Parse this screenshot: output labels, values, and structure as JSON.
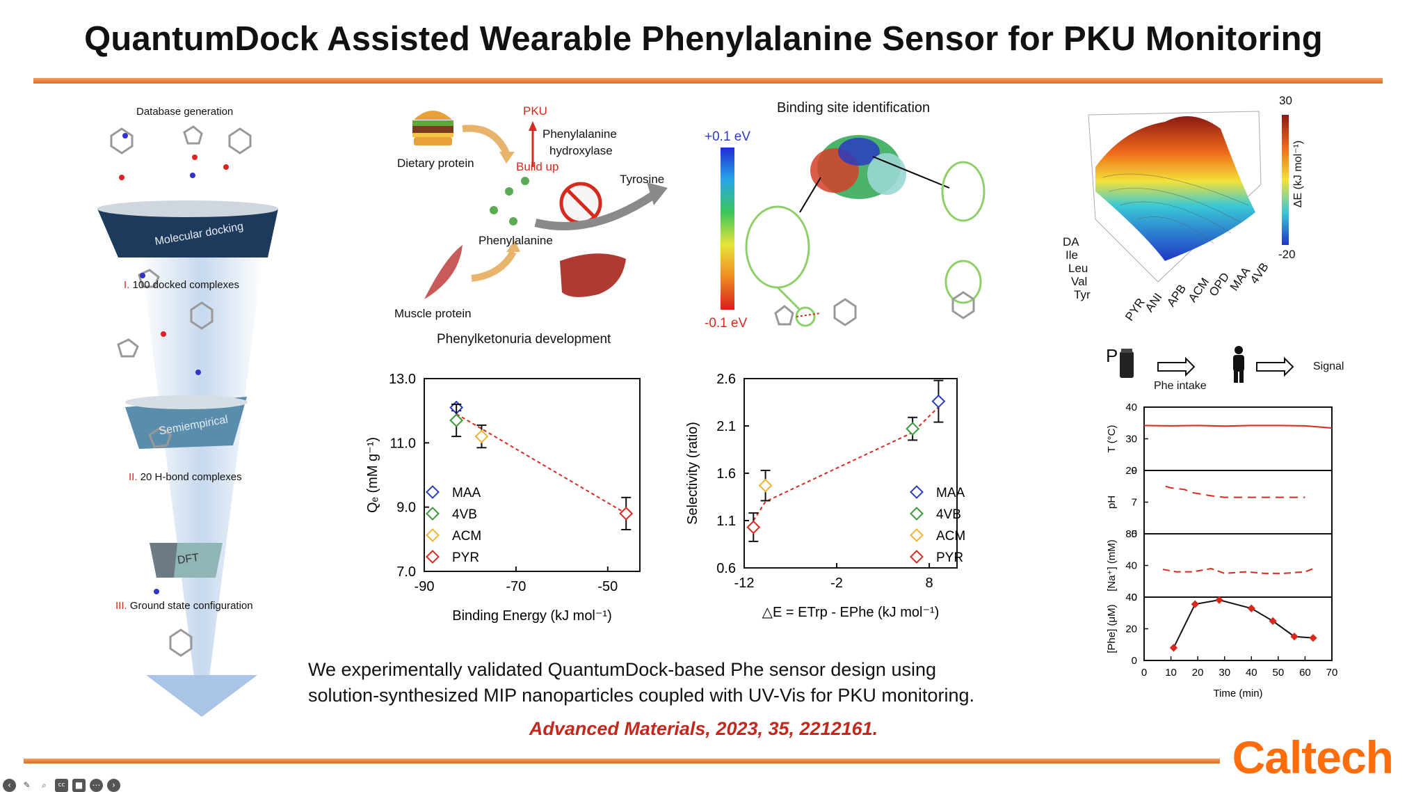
{
  "slide": {
    "title": "QuantumDock Assisted Wearable Phenylalanine Sensor for PKU Monitoring",
    "caption_line1": "We experimentally validated QuantumDock-based Phe sensor design using",
    "caption_line2": "solution-synthesized MIP nanoparticles coupled with UV-Vis for PKU monitoring.",
    "citation": "Advanced Materials, 2023, 35, 2212161.",
    "logo": "Caltech",
    "colors": {
      "accent_rule": "#e87a2c",
      "citation": "#c4281c",
      "logo": "#ff6c0c"
    }
  },
  "funnel": {
    "database_label": "Database generation",
    "stage1": "Molecular docking",
    "step1_num": "I.",
    "step1_text": "100 docked complexes",
    "stage2": "Semiempirical",
    "step2_num": "II.",
    "step2_text": "20 H-bond complexes",
    "stage3": "DFT",
    "step3_num": "III.",
    "step3_text": "Ground state configuration"
  },
  "pku_diagram": {
    "pku": "PKU",
    "enzyme_line1": "Phenylalanine",
    "enzyme_line2": "hydroxylase",
    "build_up": "Build up",
    "dietary": "Dietary protein",
    "tyrosine": "Tyrosine",
    "phenylalanine": "Phenylalanine",
    "muscle": "Muscle protein",
    "caption": "Phenylketonuria development"
  },
  "binding_site": {
    "title": "Binding site identification",
    "scale_top": "+0.1 eV",
    "scale_bottom": "-0.1 eV"
  },
  "surface_plot": {
    "cbar_top": "30",
    "cbar_bottom": "-20",
    "cbar_label": "ΔE (kJ mol⁻¹)",
    "y_labels": [
      "DA",
      "Ile",
      "Leu",
      "Val",
      "Tyr"
    ],
    "x_labels": [
      "PYR",
      "ANI",
      "APB",
      "ACM",
      "OPD",
      "MAA",
      "4VB"
    ]
  },
  "wearable": {
    "p_label": "P",
    "phe_intake": "Phe intake",
    "signal": "Signal",
    "time_label": "Time (min)",
    "x_ticks": [
      "0",
      "10",
      "20",
      "30",
      "40",
      "50",
      "60",
      "70"
    ],
    "panels": [
      {
        "ylabel": "T (°C)",
        "ticks": [
          "40",
          "30",
          "20"
        ]
      },
      {
        "ylabel": "pH",
        "ticks": [
          "9",
          "7",
          "5"
        ]
      },
      {
        "ylabel": "[Na⁺] (mM)",
        "ticks": [
          "80",
          "40",
          "0"
        ]
      },
      {
        "ylabel": "[Phe] (μM)",
        "ticks": [
          "40",
          "20",
          "0"
        ]
      }
    ]
  },
  "chart_data": [
    {
      "type": "scatter",
      "xlabel": "Binding Energy (kJ mol⁻¹)",
      "ylabel": "Qₑ (mM g⁻¹)",
      "xlim": [
        -90,
        -43
      ],
      "ylim": [
        7.0,
        13.0
      ],
      "x_ticks": [
        "-90",
        "-70",
        "-50"
      ],
      "y_ticks": [
        "13.0",
        "11.0",
        "9.0",
        "7.0"
      ],
      "series": [
        {
          "name": "MAA",
          "color": "#2b3bbf",
          "x": [
            -83
          ],
          "y": [
            12.1
          ],
          "err": [
            0.1
          ]
        },
        {
          "name": "4VB",
          "color": "#3a9a3a",
          "x": [
            -83
          ],
          "y": [
            11.7
          ],
          "err": [
            0.5
          ]
        },
        {
          "name": "ACM",
          "color": "#f2b233",
          "x": [
            -77.5
          ],
          "y": [
            11.2
          ],
          "err": [
            0.35
          ]
        },
        {
          "name": "PYR",
          "color": "#d62a1e",
          "x": [
            -46
          ],
          "y": [
            8.8
          ],
          "err": [
            0.5
          ]
        }
      ],
      "fit": {
        "x": [
          -83,
          -46
        ],
        "y": [
          11.9,
          8.8
        ],
        "color": "#d62a1e"
      }
    },
    {
      "type": "scatter",
      "xlabel": "△E = ETrp - EPhe (kJ mol⁻¹)",
      "ylabel": "Selectivity (ratio)",
      "xlim": [
        -12,
        11
      ],
      "ylim": [
        0.6,
        2.6
      ],
      "x_ticks": [
        "-12",
        "-2",
        "8"
      ],
      "y_ticks": [
        "2.6",
        "2.1",
        "1.6",
        "1.1",
        "0.6"
      ],
      "series": [
        {
          "name": "MAA",
          "color": "#2b3bbf",
          "x": [
            9
          ],
          "y": [
            2.36
          ],
          "err": [
            0.22
          ]
        },
        {
          "name": "4VB",
          "color": "#3a9a3a",
          "x": [
            6.2
          ],
          "y": [
            2.07
          ],
          "err": [
            0.12
          ]
        },
        {
          "name": "ACM",
          "color": "#f2b233",
          "x": [
            -9.7
          ],
          "y": [
            1.47
          ],
          "err": [
            0.16
          ]
        },
        {
          "name": "PYR",
          "color": "#d62a1e",
          "x": [
            -11
          ],
          "y": [
            1.03
          ],
          "err": [
            0.15
          ]
        }
      ],
      "fit": {
        "x": [
          -11,
          -9.7,
          6.2,
          9
        ],
        "y": [
          1.1,
          1.3,
          2.03,
          2.3
        ],
        "color": "#d62a1e"
      }
    },
    {
      "type": "line",
      "xlabel": "Time (min)",
      "xlim": [
        0,
        70
      ],
      "series": [
        {
          "panel": "T (°C)",
          "ylim": [
            20,
            40
          ],
          "x": [
            0,
            10,
            20,
            30,
            40,
            50,
            60,
            70
          ],
          "y": [
            34.2,
            34.1,
            34.2,
            34.0,
            34.2,
            34.2,
            34.1,
            33.4
          ]
        },
        {
          "panel": "pH",
          "ylim": [
            5,
            9
          ],
          "x": [
            8,
            10,
            15,
            18,
            25,
            30,
            40,
            50,
            60
          ],
          "y": [
            8.0,
            7.9,
            7.8,
            7.6,
            7.4,
            7.3,
            7.3,
            7.3,
            7.3
          ]
        },
        {
          "panel": "[Na⁺] (mM)",
          "ylim": [
            0,
            80
          ],
          "x": [
            7,
            12,
            18,
            25,
            30,
            38,
            45,
            52,
            60,
            63
          ],
          "y": [
            35,
            32,
            32,
            36,
            30,
            32,
            30,
            30,
            32,
            36
          ]
        },
        {
          "panel": "[Phe] (μM)",
          "ylim": [
            0,
            45
          ],
          "x": [
            11,
            19,
            28,
            40,
            48,
            56,
            63
          ],
          "y": [
            9,
            40,
            43,
            37,
            28,
            17,
            16
          ]
        }
      ]
    }
  ]
}
